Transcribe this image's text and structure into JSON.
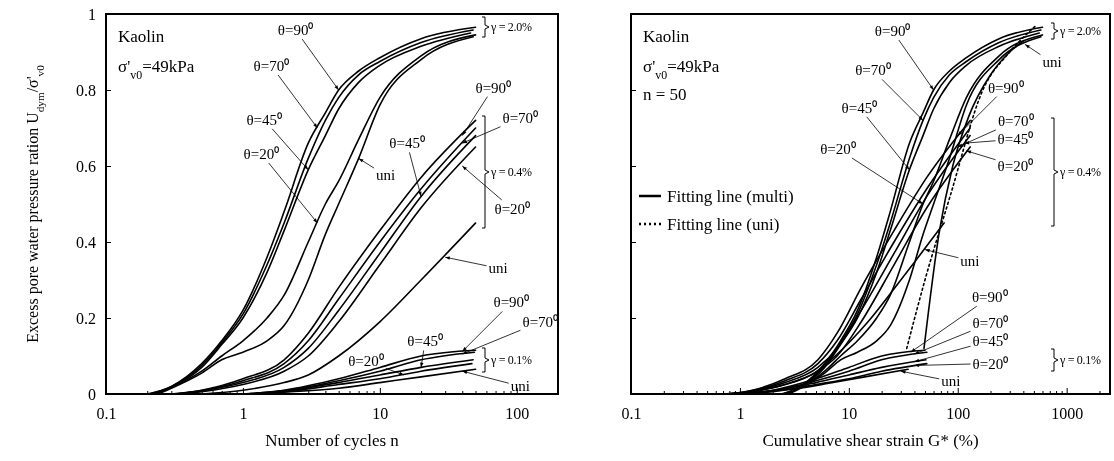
{
  "chart_data": [
    {
      "type": "line",
      "xlabel": "Number of cycles n",
      "ylabel": "Excess pore water pressure ration U$_{dym}$/σ'$_{v0}$",
      "log": "x",
      "xlim": [
        0.1,
        200
      ],
      "ylim": [
        0,
        1
      ],
      "xticks": [
        0.1,
        {
          "value": 0.2,
          "label": null
        },
        {
          "value": 0.3,
          "label": null
        },
        {
          "value": 0.4,
          "label": null
        },
        {
          "value": 0.5,
          "label": null
        },
        {
          "value": 0.6,
          "label": null
        },
        {
          "value": 0.7,
          "label": null
        },
        {
          "value": 0.8,
          "label": null
        },
        {
          "value": 0.9,
          "label": null
        },
        1,
        {
          "value": 2,
          "label": null
        },
        {
          "value": 3,
          "label": null
        },
        {
          "value": 4,
          "label": null
        },
        {
          "value": 5,
          "label": null
        },
        {
          "value": 6,
          "label": null
        },
        {
          "value": 7,
          "label": null
        },
        {
          "value": 8,
          "label": null
        },
        {
          "value": 9,
          "label": null
        },
        10,
        {
          "value": 20,
          "label": null
        },
        {
          "value": 30,
          "label": null
        },
        {
          "value": 40,
          "label": null
        },
        {
          "value": 50,
          "label": null
        },
        {
          "value": 60,
          "label": null
        },
        {
          "value": 70,
          "label": null
        },
        {
          "value": 80,
          "label": null
        },
        {
          "value": 90,
          "label": null
        },
        100,
        {
          "value": 200,
          "label": null
        }
      ],
      "yticks": [
        0,
        0.2,
        0.4,
        0.6,
        0.8,
        1
      ],
      "series": [
        {
          "color": "#000000",
          "x": [
            0.2,
            0.3,
            0.5,
            0.7,
            1,
            1.5,
            2,
            3,
            4,
            5,
            7,
            10,
            20,
            50
          ],
          "values": [
            0,
            0.02,
            0.08,
            0.14,
            0.22,
            0.36,
            0.48,
            0.66,
            0.74,
            0.8,
            0.85,
            0.885,
            0.935,
            0.965
          ]
        },
        {
          "color": "#000000",
          "x": [
            0.21,
            0.3,
            0.5,
            0.7,
            1,
            1.5,
            2,
            3,
            4,
            5,
            7,
            10,
            20,
            48
          ],
          "values": [
            0,
            0.019,
            0.075,
            0.135,
            0.21,
            0.34,
            0.45,
            0.62,
            0.72,
            0.78,
            0.84,
            0.875,
            0.925,
            0.958
          ]
        },
        {
          "color": "#000000",
          "x": [
            0.22,
            0.3,
            0.5,
            0.7,
            1,
            1.5,
            2,
            3,
            4,
            5,
            7,
            10,
            20,
            46
          ],
          "values": [
            0,
            0.018,
            0.07,
            0.13,
            0.2,
            0.32,
            0.43,
            0.59,
            0.68,
            0.75,
            0.82,
            0.865,
            0.915,
            0.95
          ]
        },
        {
          "color": "#000000",
          "x": [
            0.23,
            0.3,
            0.5,
            0.7,
            1,
            1.5,
            2,
            3,
            4,
            5,
            7,
            10,
            20,
            50
          ],
          "values": [
            0,
            0.017,
            0.06,
            0.1,
            0.14,
            0.2,
            0.26,
            0.4,
            0.5,
            0.56,
            0.67,
            0.78,
            0.89,
            0.945
          ]
        },
        {
          "color": "#000000",
          "x": [
            0.24,
            0.3,
            0.5,
            0.7,
            1,
            1.5,
            2,
            3,
            4,
            5,
            7,
            10,
            20,
            48
          ],
          "values": [
            0,
            0.015,
            0.055,
            0.09,
            0.11,
            0.14,
            0.18,
            0.3,
            0.42,
            0.5,
            0.62,
            0.76,
            0.88,
            0.94
          ]
        },
        {
          "color": "#000000",
          "x": [
            0.3,
            0.5,
            1,
            2,
            3,
            5,
            10,
            20,
            50
          ],
          "values": [
            0,
            0.01,
            0.04,
            0.09,
            0.16,
            0.28,
            0.43,
            0.57,
            0.72
          ]
        },
        {
          "color": "#000000",
          "x": [
            0.32,
            0.5,
            1,
            2,
            3,
            5,
            10,
            20,
            50
          ],
          "values": [
            0,
            0.009,
            0.035,
            0.08,
            0.14,
            0.25,
            0.4,
            0.54,
            0.7
          ]
        },
        {
          "color": "#000000",
          "x": [
            0.34,
            0.5,
            1,
            2,
            3,
            5,
            10,
            20,
            50
          ],
          "values": [
            0,
            0.008,
            0.03,
            0.07,
            0.12,
            0.22,
            0.37,
            0.52,
            0.68
          ]
        },
        {
          "color": "#000000",
          "x": [
            0.36,
            0.5,
            1,
            2,
            3,
            5,
            10,
            20,
            50
          ],
          "values": [
            0,
            0.006,
            0.025,
            0.06,
            0.1,
            0.19,
            0.34,
            0.49,
            0.65
          ]
        },
        {
          "color": "#000000",
          "x": [
            0.5,
            1,
            2,
            3,
            5,
            10,
            20,
            50
          ],
          "values": [
            0,
            0.01,
            0.03,
            0.05,
            0.1,
            0.19,
            0.3,
            0.45
          ]
        },
        {
          "color": "#000000",
          "x": [
            1,
            2,
            5,
            10,
            20,
            50
          ],
          "values": [
            0,
            0.01,
            0.04,
            0.07,
            0.1,
            0.115
          ]
        },
        {
          "color": "#000000",
          "x": [
            1.05,
            2,
            5,
            10,
            20,
            49
          ],
          "values": [
            0,
            0.009,
            0.035,
            0.06,
            0.09,
            0.11
          ]
        },
        {
          "color": "#000000",
          "x": [
            1.1,
            2,
            5,
            10,
            20,
            48
          ],
          "values": [
            0,
            0.008,
            0.03,
            0.05,
            0.07,
            0.09
          ]
        },
        {
          "color": "#000000",
          "x": [
            1.15,
            2,
            5,
            10,
            20,
            47
          ],
          "values": [
            0,
            0.006,
            0.025,
            0.04,
            0.06,
            0.08
          ]
        },
        {
          "color": "#000000",
          "x": [
            1.2,
            2,
            5,
            10,
            20,
            50
          ],
          "values": [
            0,
            0.005,
            0.015,
            0.03,
            0.045,
            0.065
          ]
        }
      ],
      "annotations": [
        "Kaolin",
        "σ'$_{v0}$=49kPa",
        {
          "text": "θ=90⁰",
          "x": 5,
          "y": 0.8
        },
        {
          "text": "θ=70⁰",
          "x": 3.5,
          "y": 0.7
        },
        {
          "text": "θ=45⁰",
          "x": 3,
          "y": 0.59
        },
        {
          "text": "θ=20⁰",
          "x": 3.5,
          "y": 0.45
        },
        {
          "text": "uni",
          "x": 7,
          "y": 0.62
        },
        {
          "text": "θ=90⁰",
          "x": 40,
          "y": 0.68
        },
        {
          "text": "θ=70⁰",
          "x": 40,
          "y": 0.66
        },
        {
          "text": "θ=45⁰",
          "x": 20,
          "y": 0.52
        },
        {
          "text": "θ=20⁰",
          "x": 40,
          "y": 0.6
        },
        {
          "text": "uni",
          "x": 30,
          "y": 0.36
        },
        "γ = 2.0%",
        "γ = 0.4%",
        "γ = 0.1%",
        {
          "text": "θ=90⁰",
          "x": 40,
          "y": 0.112
        },
        {
          "text": "θ=70⁰",
          "x": 40,
          "y": 0.105
        },
        {
          "text": "θ=45⁰",
          "x": 20,
          "y": 0.07
        },
        {
          "text": "θ=20⁰",
          "x": 15,
          "y": 0.05
        },
        {
          "text": "uni",
          "x": 40,
          "y": 0.06
        }
      ]
    },
    {
      "type": "line",
      "xlabel": "Cumulative shear strain G* (%)",
      "log": "x",
      "xlim": [
        0.1,
        2500
      ],
      "ylim": [
        0,
        1
      ],
      "tick_labels": "x",
      "legend": "left",
      "xticks": [
        0.1,
        {
          "value": 0.2,
          "label": null
        },
        {
          "value": 0.3,
          "label": null
        },
        {
          "value": 0.4,
          "label": null
        },
        {
          "value": 0.5,
          "label": null
        },
        {
          "value": 0.6,
          "label": null
        },
        {
          "value": 0.7,
          "label": null
        },
        {
          "value": 0.8,
          "label": null
        },
        {
          "value": 0.9,
          "label": null
        },
        1,
        {
          "value": 2,
          "label": null
        },
        {
          "value": 3,
          "label": null
        },
        {
          "value": 4,
          "label": null
        },
        {
          "value": 5,
          "label": null
        },
        {
          "value": 6,
          "label": null
        },
        {
          "value": 7,
          "label": null
        },
        {
          "value": 8,
          "label": null
        },
        {
          "value": 9,
          "label": null
        },
        10,
        {
          "value": 20,
          "label": null
        },
        {
          "value": 30,
          "label": null
        },
        {
          "value": 40,
          "label": null
        },
        {
          "value": 50,
          "label": null
        },
        {
          "value": 60,
          "label": null
        },
        {
          "value": 70,
          "label": null
        },
        {
          "value": 80,
          "label": null
        },
        {
          "value": 90,
          "label": null
        },
        100,
        {
          "value": 200,
          "label": null
        },
        {
          "value": 300,
          "label": null
        },
        {
          "value": 400,
          "label": null
        },
        {
          "value": 500,
          "label": null
        },
        {
          "value": 600,
          "label": null
        },
        {
          "value": 700,
          "label": null
        },
        {
          "value": 800,
          "label": null
        },
        {
          "value": 900,
          "label": null
        },
        1000,
        {
          "value": 2000,
          "label": null
        }
      ],
      "yticks": [
        0,
        0.2,
        0.4,
        0.6,
        0.8,
        1
      ],
      "series": [
        {
          "color": "#000000",
          "x": [
            2.4,
            3.6,
            6,
            8.4,
            12,
            18,
            24,
            36,
            48,
            60,
            84,
            120,
            240,
            600
          ],
          "values": [
            0,
            0.02,
            0.08,
            0.14,
            0.22,
            0.36,
            0.48,
            0.66,
            0.74,
            0.8,
            0.85,
            0.885,
            0.935,
            0.965
          ]
        },
        {
          "color": "#000000",
          "x": [
            2.5,
            3.6,
            6,
            8.4,
            12,
            18,
            24,
            36,
            48,
            60,
            84,
            120,
            240,
            580
          ],
          "values": [
            0,
            0.019,
            0.075,
            0.135,
            0.21,
            0.34,
            0.45,
            0.62,
            0.72,
            0.78,
            0.84,
            0.875,
            0.925,
            0.958
          ]
        },
        {
          "color": "#000000",
          "x": [
            2.6,
            3.6,
            6,
            8.4,
            12,
            18,
            24,
            36,
            48,
            60,
            84,
            120,
            240,
            560
          ],
          "values": [
            0,
            0.018,
            0.07,
            0.13,
            0.2,
            0.32,
            0.43,
            0.59,
            0.68,
            0.75,
            0.82,
            0.865,
            0.915,
            0.95
          ]
        },
        {
          "color": "#000000",
          "x": [
            2.7,
            3.6,
            6,
            8.4,
            12,
            18,
            24,
            36,
            48,
            60,
            84,
            120,
            240,
            600
          ],
          "values": [
            0,
            0.017,
            0.06,
            0.1,
            0.14,
            0.2,
            0.26,
            0.4,
            0.5,
            0.56,
            0.67,
            0.78,
            0.89,
            0.945
          ]
        },
        {
          "color": "#000000",
          "x": [
            2.8,
            3.6,
            6,
            8.4,
            12,
            18,
            24,
            36,
            48,
            60,
            84,
            120,
            240,
            580
          ],
          "values": [
            0,
            0.015,
            0.055,
            0.09,
            0.11,
            0.14,
            0.18,
            0.3,
            0.42,
            0.5,
            0.62,
            0.76,
            0.88,
            0.94
          ]
        },
        {
          "color": "#000000",
          "x": [
            0.78,
            1.3,
            2.6,
            5.2,
            7.8,
            13,
            26,
            52,
            130
          ],
          "values": [
            0,
            0.01,
            0.04,
            0.09,
            0.16,
            0.28,
            0.43,
            0.57,
            0.72
          ]
        },
        {
          "color": "#000000",
          "x": [
            0.82,
            1.3,
            2.6,
            5.2,
            7.8,
            13,
            26,
            52,
            130
          ],
          "values": [
            0,
            0.009,
            0.035,
            0.08,
            0.14,
            0.25,
            0.4,
            0.54,
            0.7
          ]
        },
        {
          "color": "#000000",
          "x": [
            0.86,
            1.3,
            2.6,
            5.2,
            7.8,
            13,
            26,
            52,
            130
          ],
          "values": [
            0,
            0.008,
            0.03,
            0.07,
            0.12,
            0.22,
            0.37,
            0.52,
            0.68
          ]
        },
        {
          "color": "#000000",
          "x": [
            0.9,
            1.3,
            2.6,
            5.2,
            7.8,
            13,
            26,
            52,
            130
          ],
          "values": [
            0,
            0.006,
            0.025,
            0.06,
            0.1,
            0.19,
            0.34,
            0.49,
            0.65
          ]
        },
        {
          "color": "#000000",
          "x": [
            0.75,
            1.5,
            3,
            4.5,
            7.5,
            15,
            30,
            75
          ],
          "values": [
            0,
            0.01,
            0.03,
            0.05,
            0.1,
            0.19,
            0.3,
            0.45
          ]
        },
        {
          "color": "#000000",
          "x": [
            0.95,
            2,
            5,
            10,
            20,
            50
          ],
          "values": [
            0,
            0.01,
            0.04,
            0.07,
            0.1,
            0.115
          ]
        },
        {
          "color": "#000000",
          "x": [
            1,
            2,
            5,
            10,
            20,
            52
          ],
          "values": [
            0,
            0.009,
            0.035,
            0.06,
            0.09,
            0.11
          ]
        },
        {
          "color": "#000000",
          "x": [
            1.05,
            2,
            5,
            10,
            20,
            51
          ],
          "values": [
            0,
            0.008,
            0.03,
            0.05,
            0.07,
            0.09
          ]
        },
        {
          "color": "#000000",
          "x": [
            1.1,
            2,
            5,
            10,
            20,
            52
          ],
          "values": [
            0,
            0.006,
            0.025,
            0.04,
            0.06,
            0.08
          ]
        },
        {
          "color": "#000000",
          "x": [
            0.7,
            1.4,
            3.5,
            7,
            14,
            35
          ],
          "values": [
            0,
            0.005,
            0.015,
            0.03,
            0.045,
            0.065
          ]
        },
        {
          "name": "Fitting line (multi)",
          "color": "#000000",
          "line_style": "solid",
          "x": [
            49,
            68,
            90,
            126,
            200,
            300,
            405
          ],
          "values": [
            0.12,
            0.43,
            0.6,
            0.73,
            0.84,
            0.9,
            0.93
          ]
        },
        {
          "name": "Fitting line (uni)",
          "color": "#000000",
          "line_style": "dotted",
          "x": [
            34,
            50,
            85,
            170,
            300,
            525
          ],
          "values": [
            0.12,
            0.3,
            0.52,
            0.8,
            0.9,
            0.97
          ]
        }
      ],
      "annotations": [
        "Kaolin",
        "σ'$_{v0}$=49kPa",
        "n = 50",
        {
          "text": "θ=90⁰",
          "x": 60,
          "y": 0.8
        },
        {
          "text": "θ=70⁰",
          "x": 48,
          "y": 0.72
        },
        {
          "text": "θ=45⁰",
          "x": 36,
          "y": 0.59
        },
        {
          "text": "θ=20⁰",
          "x": 48,
          "y": 0.5
        },
        {
          "text": "uni",
          "x": 415,
          "y": 0.92
        },
        {
          "text": "θ=90⁰",
          "x": 100,
          "y": 0.68
        },
        {
          "text": "θ=70⁰",
          "x": 100,
          "y": 0.65
        },
        {
          "text": "θ=45⁰",
          "x": 115,
          "y": 0.66
        },
        {
          "text": "θ=20⁰",
          "x": 120,
          "y": 0.64
        },
        {
          "text": "uni",
          "x": 50,
          "y": 0.38
        },
        "γ = 2.0%",
        "γ = 0.4%",
        "γ = 0.1%",
        {
          "text": "θ=90⁰",
          "x": 37,
          "y": 0.11
        },
        {
          "text": "θ=70⁰",
          "x": 40,
          "y": 0.105
        },
        {
          "text": "θ=45⁰",
          "x": 40,
          "y": 0.085
        },
        {
          "text": "θ=20⁰",
          "x": 40,
          "y": 0.075
        },
        {
          "text": "uni",
          "x": 30,
          "y": 0.06
        }
      ]
    }
  ]
}
